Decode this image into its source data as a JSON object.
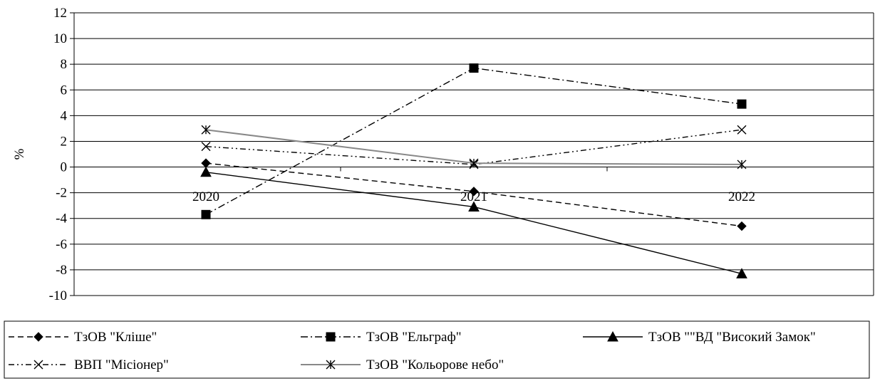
{
  "chart_data": {
    "type": "line",
    "title": "",
    "xlabel": "",
    "ylabel": "%",
    "categories": [
      "2020",
      "2021",
      "2022"
    ],
    "ylim": [
      -10,
      12
    ],
    "yticks": [
      -10,
      -8,
      -6,
      -4,
      -2,
      0,
      2,
      4,
      6,
      8,
      10,
      12
    ],
    "grid": true,
    "legend": "bottom",
    "series": [
      {
        "name": "ТзОВ \"Кліше\"",
        "values": [
          0.3,
          -1.9,
          -4.6
        ],
        "marker": "diamond",
        "dash": "dashed",
        "color": "#000000"
      },
      {
        "name": "ТзОВ \"Ельграф\"",
        "values": [
          -3.7,
          7.7,
          4.9
        ],
        "marker": "square",
        "dash": "dashdot",
        "color": "#000000"
      },
      {
        "name": "ТзОВ \"\"ВД \"Високий Замок\"",
        "values": [
          -0.4,
          -3.1,
          -8.3
        ],
        "marker": "triangle",
        "dash": "solid",
        "color": "#000000"
      },
      {
        "name": "ВВП \"Місіонер\"",
        "values": [
          1.6,
          0.2,
          2.9
        ],
        "marker": "x",
        "dash": "dashdotdot",
        "color": "#000000"
      },
      {
        "name": "ТзОВ \"Кольорове небо\"",
        "values": [
          2.9,
          0.3,
          0.2
        ],
        "marker": "star",
        "dash": "solid",
        "color": "#888888"
      }
    ]
  }
}
